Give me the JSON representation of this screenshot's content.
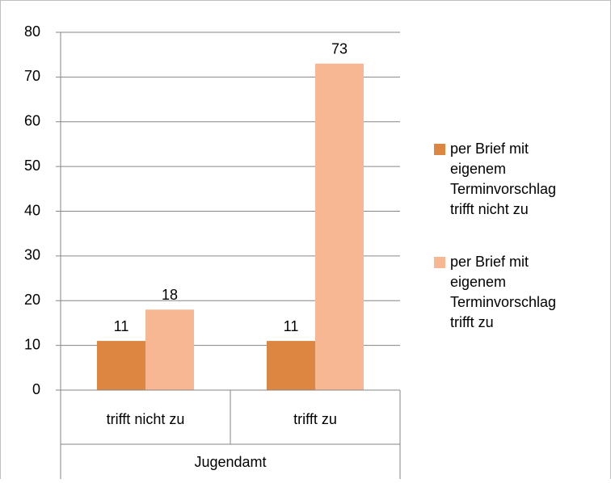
{
  "chart_data": {
    "type": "bar",
    "categories": [
      "trifft nicht zu",
      "trifft zu"
    ],
    "group_label": "Jugendamt",
    "series": [
      {
        "name": "per Brief mit eigenem Terminvorschlag trifft nicht zu",
        "color": "#dc8642",
        "values": [
          11,
          11
        ]
      },
      {
        "name": "per Brief mit eigenem Terminvorschlag trifft zu",
        "color": "#f8b793",
        "values": [
          18,
          73
        ]
      }
    ],
    "ylim": [
      0,
      80
    ],
    "yticks": [
      0,
      10,
      20,
      30,
      40,
      50,
      60,
      70,
      80
    ],
    "grid": true,
    "legend": "right"
  }
}
